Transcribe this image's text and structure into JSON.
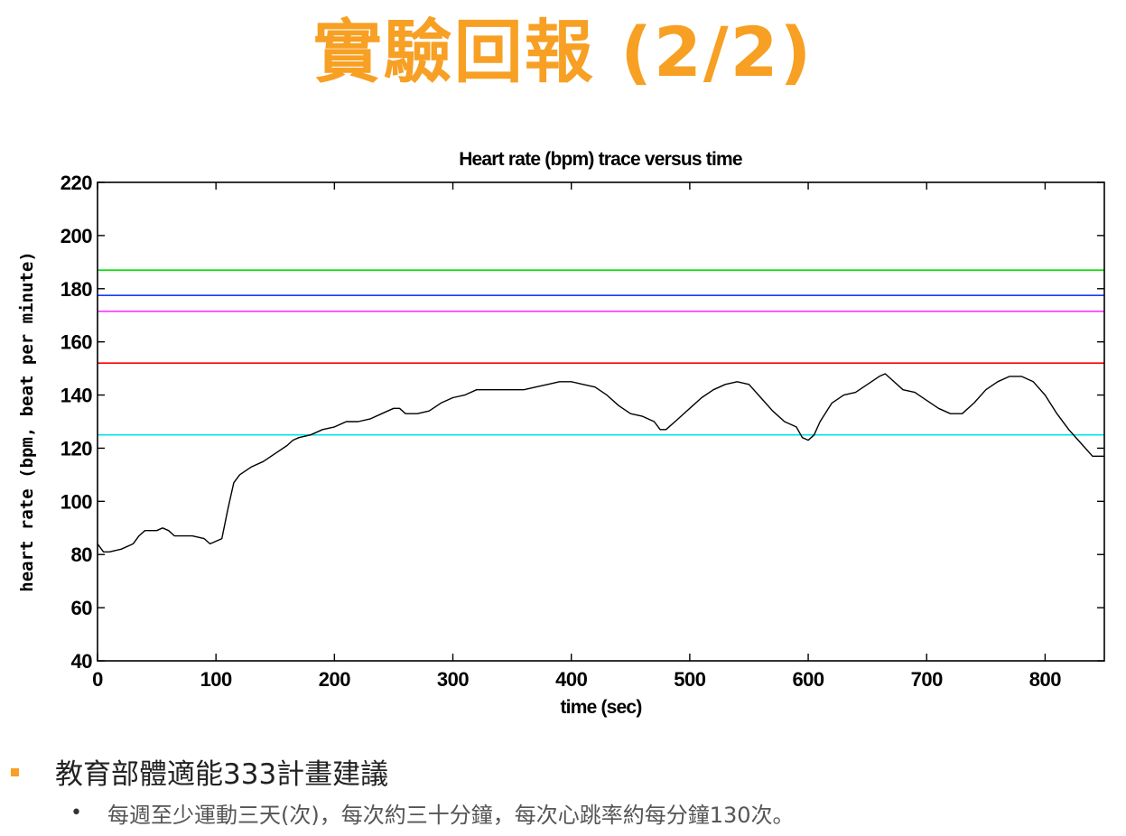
{
  "slide": {
    "title": "實驗回報 (2/2)",
    "bullets": [
      {
        "text": "教育部體適能333計畫建議",
        "sub": [
          "每週至少運動三天(次)，每次約三十分鐘，每次心跳率約每分鐘130次。"
        ]
      }
    ]
  },
  "colors": {
    "title": "#f7a024",
    "bullet_marker": "#f7a024"
  },
  "chart_data": {
    "type": "line",
    "title": "Heart rate (bpm) trace versus time",
    "xlabel": "time (sec)",
    "ylabel": "heart rate (bpm, beat per minute)",
    "xlim": [
      0,
      850
    ],
    "ylim": [
      40,
      220
    ],
    "xticks": [
      0,
      100,
      200,
      300,
      400,
      500,
      600,
      700,
      800
    ],
    "yticks": [
      40,
      60,
      80,
      100,
      120,
      140,
      160,
      180,
      200,
      220
    ],
    "grid": false,
    "series": [
      {
        "color": "#000000",
        "x": [
          0,
          5,
          10,
          20,
          30,
          35,
          40,
          50,
          55,
          60,
          65,
          70,
          80,
          90,
          95,
          100,
          105,
          110,
          115,
          120,
          130,
          140,
          150,
          160,
          165,
          170,
          180,
          190,
          200,
          210,
          220,
          230,
          240,
          250,
          255,
          260,
          270,
          280,
          290,
          300,
          310,
          320,
          330,
          340,
          350,
          360,
          370,
          380,
          390,
          400,
          410,
          420,
          430,
          440,
          450,
          460,
          470,
          475,
          480,
          490,
          500,
          510,
          520,
          530,
          540,
          550,
          560,
          570,
          580,
          590,
          595,
          600,
          605,
          610,
          620,
          630,
          640,
          650,
          660,
          665,
          670,
          680,
          690,
          700,
          710,
          720,
          730,
          740,
          750,
          760,
          770,
          780,
          790,
          800,
          810,
          820,
          830,
          840,
          850
        ],
        "y": [
          84,
          81,
          81,
          82,
          84,
          87,
          89,
          89,
          90,
          89,
          87,
          87,
          87,
          86,
          84,
          85,
          86,
          97,
          107,
          110,
          113,
          115,
          118,
          121,
          123,
          124,
          125,
          127,
          128,
          130,
          130,
          131,
          133,
          135,
          135,
          133,
          133,
          134,
          137,
          139,
          140,
          142,
          142,
          142,
          142,
          142,
          143,
          144,
          145,
          145,
          144,
          143,
          140,
          136,
          133,
          132,
          130,
          127,
          127,
          131,
          135,
          139,
          142,
          144,
          145,
          144,
          139,
          134,
          130,
          128,
          124,
          123,
          125,
          130,
          137,
          140,
          141,
          144,
          147,
          148,
          146,
          142,
          141,
          138,
          135,
          133,
          133,
          137,
          142,
          145,
          147,
          147,
          145,
          140,
          133,
          127,
          122,
          117,
          117
        ]
      }
    ],
    "reference_lines": [
      {
        "y": 187,
        "color": "#00e000"
      },
      {
        "y": 177.5,
        "color": "#1a3bff"
      },
      {
        "y": 171.5,
        "color": "#ff33ff"
      },
      {
        "y": 152,
        "color": "#ff0000"
      },
      {
        "y": 125,
        "color": "#00e6e6"
      }
    ]
  }
}
